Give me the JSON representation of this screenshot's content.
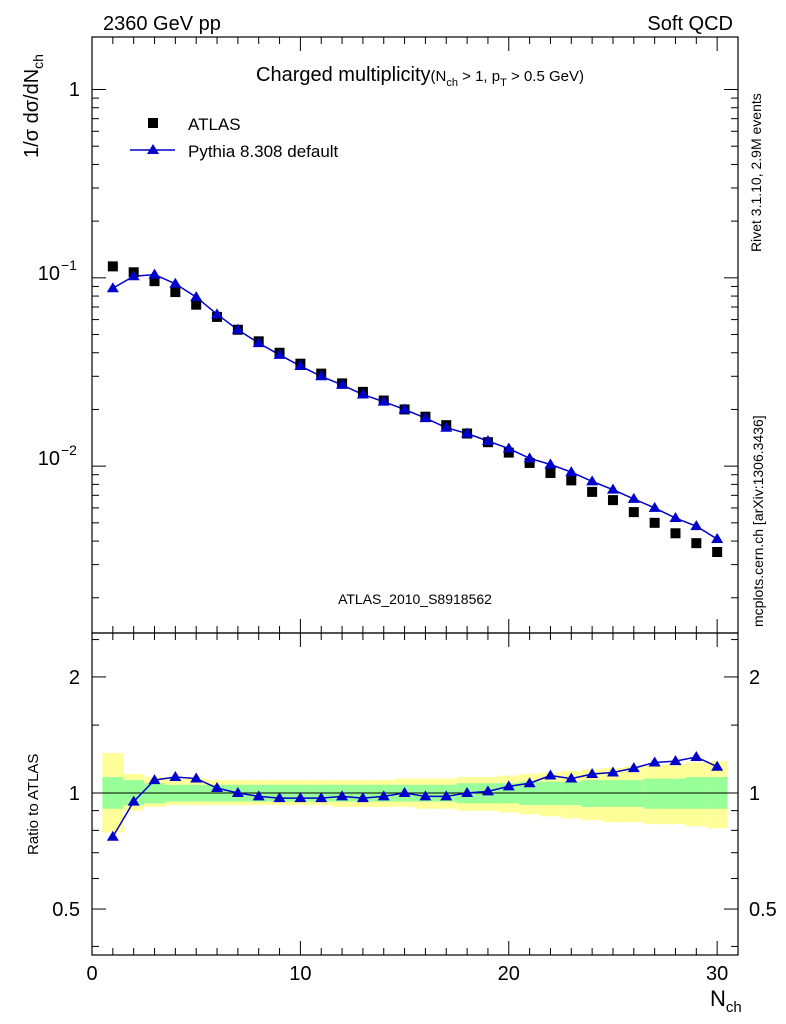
{
  "header": {
    "left": "2360 GeV pp",
    "right": "Soft QCD"
  },
  "side_labels": {
    "rivet": "Rivet 3.1.10,  2.9M events",
    "mcplots": "mcplots.cern.ch [arXiv:1306.3436]"
  },
  "chart_data": [
    {
      "type": "scatter",
      "title": "Charged multiplicity",
      "title_sub": "(N",
      "title_sub_rest": " > 1, p",
      "title_sub_end": " > 0.5 GeV)",
      "title_sub_ch": "ch",
      "title_sub_t": "T",
      "ylabel_main": "1/σ dσ/dN",
      "ylabel_sub": "ch",
      "yscale": "log",
      "ylim": [
        0.0013,
        1.9
      ],
      "xlim": [
        0,
        31
      ],
      "y_tick_labels": [
        "1",
        "10",
        "10"
      ],
      "y_tick_exps": [
        "",
        "−1",
        "−2"
      ],
      "watermark": "ATLAS_2010_S8918562",
      "legend_placement": "top-left",
      "series": [
        {
          "name": "ATLAS",
          "marker": "square",
          "color": "#000000",
          "x": [
            1,
            2,
            3,
            4,
            5,
            6,
            7,
            8,
            9,
            10,
            11,
            12,
            13,
            14,
            15,
            16,
            17,
            18,
            19,
            20,
            21,
            22,
            23,
            24,
            25,
            26,
            27,
            28,
            29,
            30
          ],
          "y": [
            0.115,
            0.107,
            0.096,
            0.084,
            0.072,
            0.062,
            0.053,
            0.046,
            0.04,
            0.035,
            0.031,
            0.0275,
            0.0248,
            0.0223,
            0.02,
            0.0183,
            0.0165,
            0.0149,
            0.0134,
            0.0118,
            0.0104,
            0.0092,
            0.0084,
            0.0073,
            0.0066,
            0.0057,
            0.005,
            0.0044,
            0.0039,
            0.0035
          ]
        },
        {
          "name": "Pythia 8.308 default",
          "marker": "triangle",
          "color": "#0000cc",
          "x": [
            1,
            2,
            3,
            4,
            5,
            6,
            7,
            8,
            9,
            10,
            11,
            12,
            13,
            14,
            15,
            16,
            17,
            18,
            19,
            20,
            21,
            22,
            23,
            24,
            25,
            26,
            27,
            28,
            29,
            30
          ],
          "y": [
            0.088,
            0.102,
            0.104,
            0.093,
            0.079,
            0.064,
            0.053,
            0.045,
            0.039,
            0.034,
            0.03,
            0.027,
            0.024,
            0.022,
            0.02,
            0.018,
            0.016,
            0.0149,
            0.0136,
            0.0124,
            0.011,
            0.0102,
            0.0093,
            0.0083,
            0.0075,
            0.0067,
            0.006,
            0.0053,
            0.0048,
            0.0041
          ]
        }
      ]
    },
    {
      "type": "line",
      "ylabel": "Ratio to ATLAS",
      "xlabel_main": "N",
      "xlabel_sub": "ch",
      "yscale": "log",
      "ylim": [
        0.38,
        2.6
      ],
      "xlim": [
        0,
        31
      ],
      "x_ticks": [
        0,
        10,
        20,
        30
      ],
      "x_tick_labels": [
        "0",
        "10",
        "20",
        "30"
      ],
      "y_ticks": [
        0.5,
        1,
        2
      ],
      "y_tick_labels": [
        "0.5",
        "1",
        "2"
      ],
      "band_colors": {
        "inner": "#99ff99",
        "outer": "#ffff99"
      },
      "bands": {
        "x": [
          1,
          2,
          3,
          4,
          5,
          6,
          7,
          8,
          9,
          10,
          11,
          12,
          13,
          14,
          15,
          16,
          17,
          18,
          19,
          20,
          21,
          22,
          23,
          24,
          25,
          26,
          27,
          28,
          29,
          30
        ],
        "inner_up": [
          1.1,
          1.08,
          1.06,
          1.05,
          1.05,
          1.05,
          1.05,
          1.05,
          1.05,
          1.05,
          1.05,
          1.05,
          1.05,
          1.05,
          1.05,
          1.05,
          1.05,
          1.06,
          1.06,
          1.06,
          1.07,
          1.07,
          1.07,
          1.08,
          1.08,
          1.08,
          1.09,
          1.09,
          1.1,
          1.1
        ],
        "inner_low": [
          0.91,
          0.93,
          0.94,
          0.95,
          0.95,
          0.95,
          0.95,
          0.95,
          0.95,
          0.95,
          0.95,
          0.95,
          0.95,
          0.95,
          0.95,
          0.95,
          0.95,
          0.94,
          0.94,
          0.94,
          0.93,
          0.93,
          0.93,
          0.92,
          0.92,
          0.92,
          0.91,
          0.91,
          0.91,
          0.91
        ],
        "outer_up": [
          1.27,
          1.12,
          1.1,
          1.09,
          1.09,
          1.08,
          1.08,
          1.08,
          1.08,
          1.08,
          1.08,
          1.08,
          1.08,
          1.08,
          1.09,
          1.09,
          1.09,
          1.1,
          1.1,
          1.11,
          1.12,
          1.13,
          1.14,
          1.15,
          1.16,
          1.17,
          1.18,
          1.19,
          1.2,
          1.21
        ],
        "outer_low": [
          0.79,
          0.9,
          0.92,
          0.93,
          0.93,
          0.93,
          0.93,
          0.93,
          0.93,
          0.93,
          0.93,
          0.92,
          0.92,
          0.92,
          0.92,
          0.91,
          0.91,
          0.9,
          0.9,
          0.89,
          0.88,
          0.87,
          0.86,
          0.85,
          0.84,
          0.84,
          0.83,
          0.83,
          0.82,
          0.81
        ]
      },
      "series": [
        {
          "name": "Pythia 8.308 default",
          "marker": "triangle",
          "color": "#0000cc",
          "x": [
            1,
            2,
            3,
            4,
            5,
            6,
            7,
            8,
            9,
            10,
            11,
            12,
            13,
            14,
            15,
            16,
            17,
            18,
            19,
            20,
            21,
            22,
            23,
            24,
            25,
            26,
            27,
            28,
            29,
            30
          ],
          "y": [
            0.77,
            0.95,
            1.08,
            1.1,
            1.09,
            1.03,
            1.0,
            0.98,
            0.97,
            0.97,
            0.97,
            0.98,
            0.97,
            0.98,
            1.0,
            0.98,
            0.98,
            1.0,
            1.01,
            1.04,
            1.06,
            1.11,
            1.09,
            1.12,
            1.13,
            1.16,
            1.2,
            1.21,
            1.24,
            1.17
          ]
        }
      ]
    }
  ]
}
